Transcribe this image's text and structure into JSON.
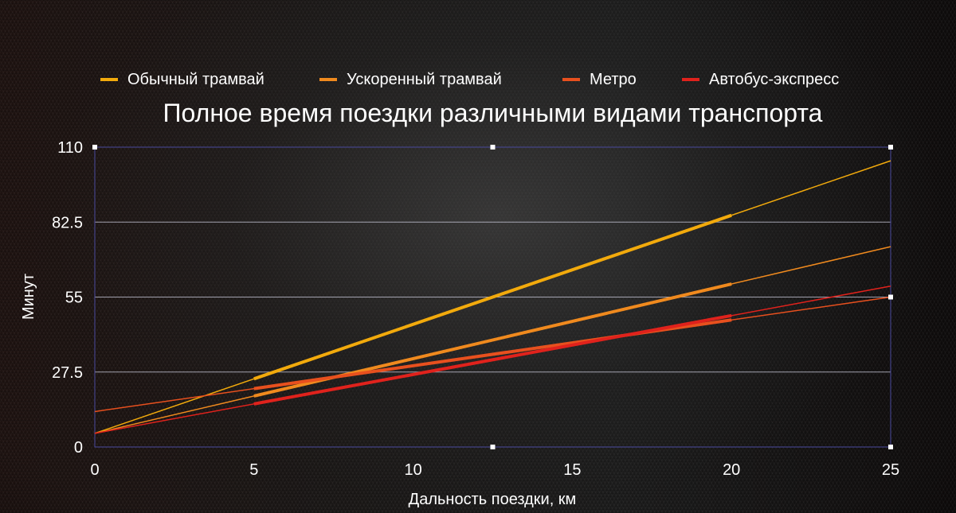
{
  "chart_data": {
    "type": "line",
    "title": "Полное время поездки различными видами транспорта",
    "xlabel": "Дальность поездки, км",
    "ylabel": "Минут",
    "xlim": [
      0,
      25
    ],
    "ylim": [
      0,
      110
    ],
    "xticks": [
      0,
      5,
      10,
      15,
      20,
      25
    ],
    "yticks": [
      0,
      27.5,
      55,
      82.5,
      110
    ],
    "grid": true,
    "legend_placement": "top",
    "series": [
      {
        "name": "Обычный трамвай",
        "color": "#f2aa0c",
        "x": [
          5,
          20
        ],
        "y": [
          25,
          85
        ],
        "trend": {
          "x": [
            0,
            25
          ],
          "y": [
            5,
            105
          ]
        }
      },
      {
        "name": "Ускоренный трамвай",
        "color": "#f08a1e",
        "x": [
          5,
          20
        ],
        "y": [
          18.7,
          59.8
        ],
        "trend": {
          "x": [
            0,
            25
          ],
          "y": [
            5,
            73.5
          ]
        }
      },
      {
        "name": "Метро",
        "color": "#e8501e",
        "x": [
          5,
          20
        ],
        "y": [
          21.4,
          46.6
        ],
        "trend": {
          "x": [
            0,
            25
          ],
          "y": [
            13,
            55
          ]
        }
      },
      {
        "name": "Автобус-экспресс",
        "color": "#e0221c",
        "x": [
          5,
          20
        ],
        "y": [
          15.8,
          48.2
        ],
        "trend": {
          "x": [
            0,
            25
          ],
          "y": [
            5,
            59
          ]
        }
      }
    ]
  },
  "colors": {
    "text": "#ffffff",
    "plot_border": "#4a4a9e",
    "gridline": "#c4c4d4",
    "handle": "#ffffff"
  }
}
